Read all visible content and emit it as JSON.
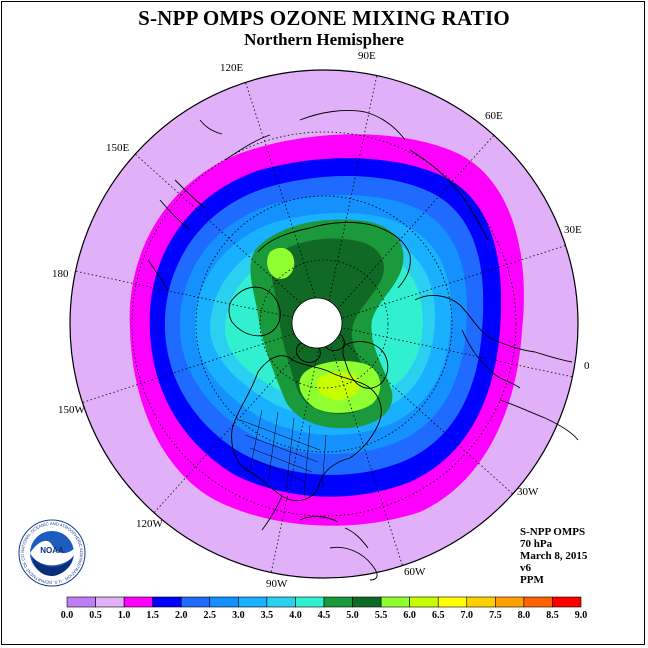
{
  "title": "S-NPP OMPS OZONE MIXING RATIO",
  "subtitle": "Northern Hemisphere",
  "longitude_labels": [
    "90E",
    "60E",
    "30E",
    "0",
    "30W",
    "60W",
    "90W",
    "120W",
    "150W",
    "180",
    "150E",
    "120E"
  ],
  "info": {
    "instrument": "S-NPP OMPS",
    "pressure": "70 hPa",
    "date": "March 8, 2015",
    "version": "v6",
    "units": "PPM"
  },
  "logo": {
    "text": "NOAA",
    "ring_text": "NATIONAL OCEANIC AND ATMOSPHERIC ADMINISTRATION · U.S. DEPARTMENT OF COMMERCE"
  },
  "colorbar": {
    "labels": [
      "0.0",
      "0.5",
      "1.0",
      "1.5",
      "2.0",
      "2.5",
      "3.0",
      "3.5",
      "4.0",
      "4.5",
      "5.0",
      "5.5",
      "6.0",
      "6.5",
      "7.0",
      "7.5",
      "8.0",
      "8.5",
      "9.0"
    ],
    "colors": [
      "#c07ef5",
      "#e0b0f8",
      "#ff00ff",
      "#0000ff",
      "#1f6bff",
      "#1590ff",
      "#18b0ff",
      "#29d0f0",
      "#30f0d0",
      "#1a9a3a",
      "#106a25",
      "#90ff30",
      "#c8ff00",
      "#ffff00",
      "#ffd000",
      "#ffa000",
      "#ff6000",
      "#ff0000",
      "#8b5a3a"
    ]
  }
}
